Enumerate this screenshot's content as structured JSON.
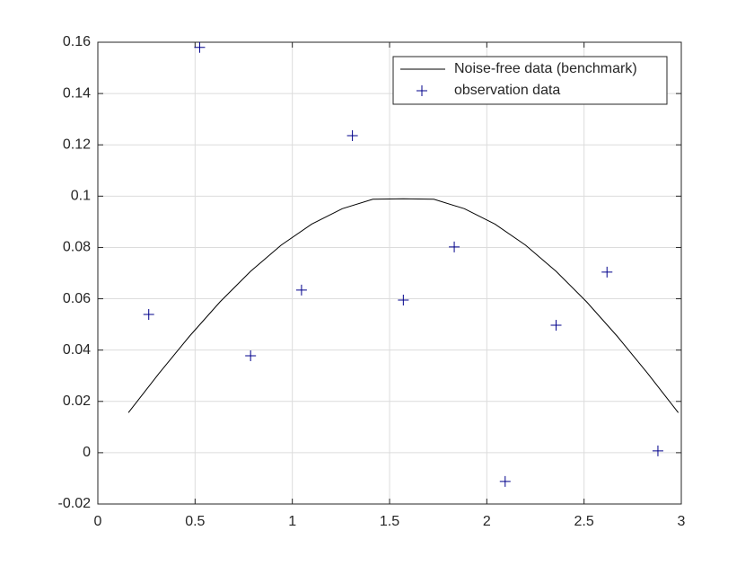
{
  "chart_data": {
    "type": "line",
    "xlim": [
      0,
      3
    ],
    "xticks": [
      0,
      0.5,
      1,
      1.5,
      2,
      2.5,
      3
    ],
    "ylim": [
      -0.02,
      0.16
    ],
    "yticks": [
      -0.02,
      0,
      0.02,
      0.04,
      0.06,
      0.08,
      0.1,
      0.12,
      0.14,
      0.16
    ],
    "grid": true,
    "legend": "upper-right",
    "series": [
      {
        "name": "Noise-free data (benchmark)",
        "color": "#000000",
        "style": "line",
        "x": [
          0.1571,
          0.3142,
          0.4712,
          0.6283,
          0.7854,
          0.9425,
          1.0996,
          1.2566,
          1.4137,
          1.5708,
          1.7279,
          1.885,
          2.042,
          2.1991,
          2.3562,
          2.5133,
          2.6704,
          2.8274,
          2.9845
        ],
        "values": [
          0.0156,
          0.0309,
          0.0454,
          0.0588,
          0.0707,
          0.0809,
          0.0891,
          0.0951,
          0.0988,
          0.099,
          0.0988,
          0.0951,
          0.0891,
          0.0809,
          0.0707,
          0.0588,
          0.0454,
          0.0309,
          0.0156
        ]
      },
      {
        "name": "observation data",
        "color": "#00008b",
        "style": "marker",
        "x": [
          0.2618,
          0.5236,
          0.7854,
          1.0472,
          1.309,
          1.5708,
          1.8326,
          2.0944,
          2.3562,
          2.618,
          2.8798
        ],
        "values": [
          0.0539,
          0.158,
          0.0378,
          0.0634,
          0.1236,
          0.0595,
          0.0802,
          -0.0112,
          0.0497,
          0.0704,
          0.0007
        ]
      }
    ]
  }
}
